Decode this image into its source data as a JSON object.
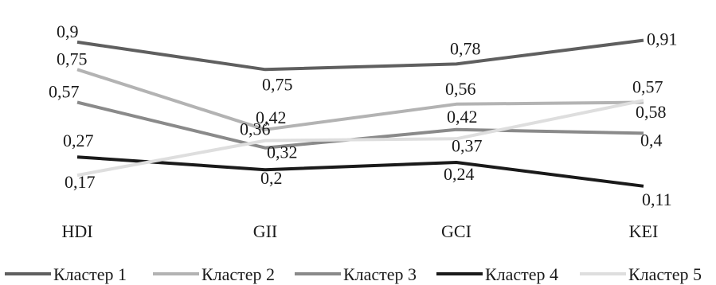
{
  "chart_data": {
    "type": "line",
    "title": "",
    "xlabel": "",
    "ylabel": "",
    "categories": [
      "HDI",
      "GII",
      "GCI",
      "KEI"
    ],
    "ylim": [
      0,
      1
    ],
    "grid": false,
    "legend_position": "bottom",
    "series": [
      {
        "name": "Кластер 1",
        "color": "#5f5f5f",
        "values": [
          0.9,
          0.75,
          0.78,
          0.91
        ],
        "labels": [
          "0,9",
          "0,75",
          "0,78",
          "0,91"
        ]
      },
      {
        "name": "Кластер 2",
        "color": "#b3b3b3",
        "values": [
          0.75,
          0.42,
          0.56,
          0.57
        ],
        "labels": [
          "0,75",
          "0,42",
          "0,56",
          "0,57"
        ]
      },
      {
        "name": "Кластер 3",
        "color": "#8a8a8a",
        "values": [
          0.57,
          0.32,
          0.42,
          0.4
        ],
        "labels": [
          "0,57",
          "0,32",
          "0,42",
          "0,4"
        ]
      },
      {
        "name": "Кластер 4",
        "color": "#1a1a1a",
        "values": [
          0.27,
          0.2,
          0.24,
          0.11
        ],
        "labels": [
          "0,27",
          "0,2",
          "0,24",
          "0,11"
        ]
      },
      {
        "name": "Кластер 5",
        "color": "#dedede",
        "values": [
          0.17,
          0.36,
          0.37,
          0.58
        ],
        "labels": [
          "0,17",
          "0,36",
          "0,37",
          "0,58"
        ]
      }
    ]
  }
}
